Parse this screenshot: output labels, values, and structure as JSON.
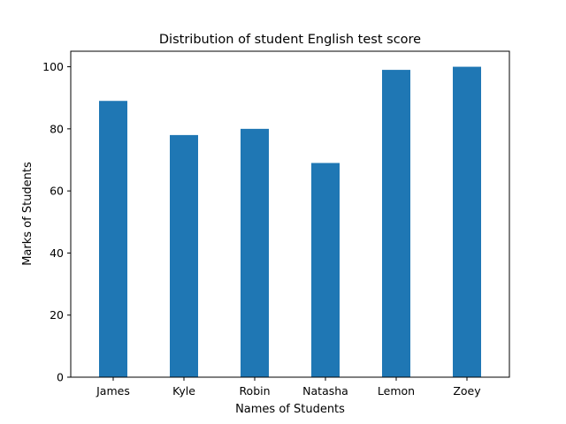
{
  "chart_data": {
    "type": "bar",
    "title": "Distribution of student English test score",
    "xlabel": "Names of Students",
    "ylabel": "Marks of Students",
    "categories": [
      "James",
      "Kyle",
      "Robin",
      "Natasha",
      "Lemon",
      "Zoey"
    ],
    "values": [
      89,
      78,
      80,
      69,
      99,
      100
    ],
    "ylim": [
      0,
      105
    ],
    "yticks": [
      0,
      20,
      40,
      60,
      80,
      100
    ],
    "grid": false,
    "bar_color": "#1f77b4"
  }
}
